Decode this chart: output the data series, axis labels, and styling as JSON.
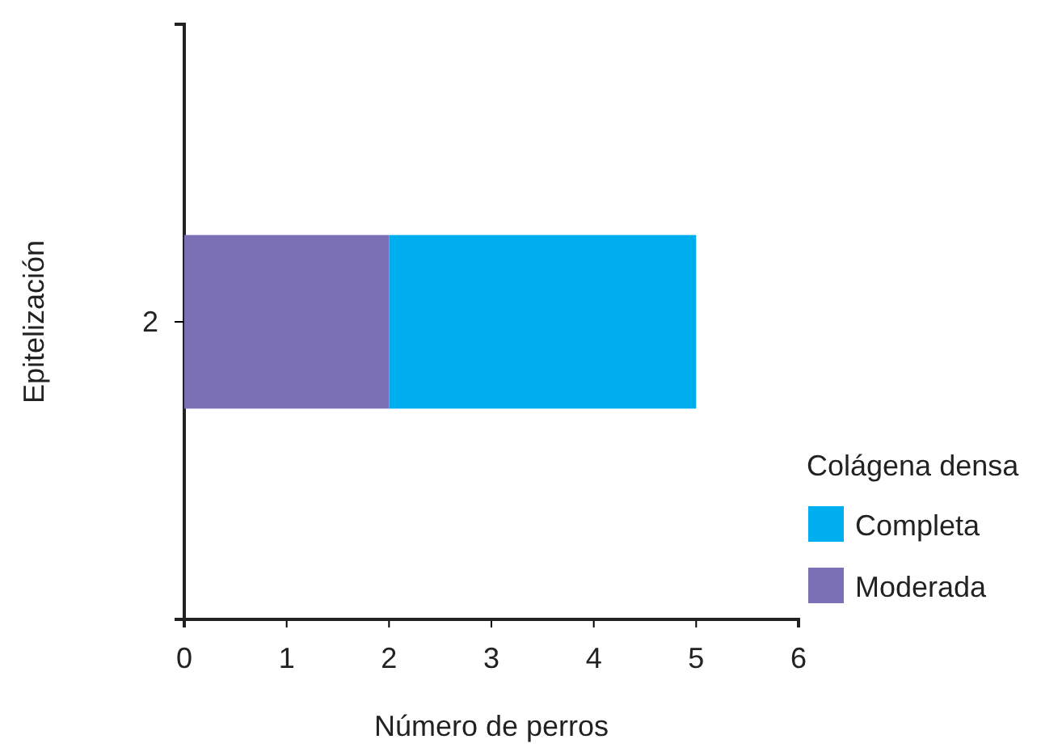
{
  "chart_data": {
    "type": "bar",
    "orientation": "horizontal",
    "stacked": true,
    "xlabel": "Número de perros",
    "ylabel": "Epitelización",
    "legend_title": "Colágena densa",
    "legend": "right",
    "categories": [
      "2"
    ],
    "series": [
      {
        "name": "Moderada",
        "color": "#7b6fb5",
        "values": [
          2
        ]
      },
      {
        "name": "Completa",
        "color": "#00aeef",
        "values": [
          3
        ]
      }
    ],
    "xlim": [
      0,
      6
    ],
    "xticks": [
      0,
      1,
      2,
      3,
      4,
      5,
      6
    ]
  }
}
